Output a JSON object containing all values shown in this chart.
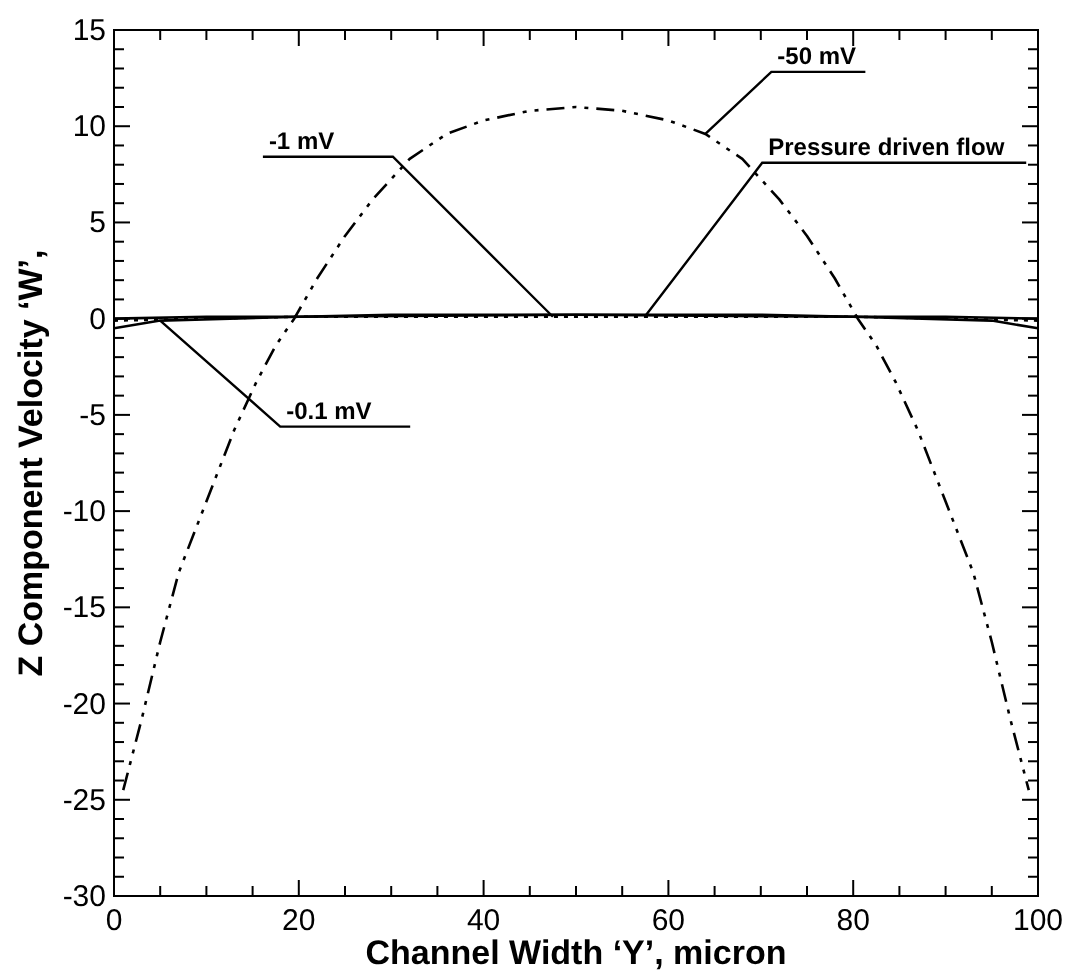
{
  "chart_data": {
    "type": "line",
    "xlabel": "Channel Width ‘Y’, micron",
    "ylabel": "Z Component Velocity ‘W’,",
    "xlim": [
      0,
      100
    ],
    "ylim": [
      -30,
      15
    ],
    "xticks": [
      0,
      {
        "value": 5,
        "label": null
      },
      {
        "value": 10,
        "label": null
      },
      {
        "value": 15,
        "label": null
      },
      20,
      {
        "value": 25,
        "label": null
      },
      {
        "value": 30,
        "label": null
      },
      {
        "value": 35,
        "label": null
      },
      40,
      {
        "value": 45,
        "label": null
      },
      {
        "value": 50,
        "label": null
      },
      {
        "value": 55,
        "label": null
      },
      60,
      {
        "value": 65,
        "label": null
      },
      {
        "value": 70,
        "label": null
      },
      {
        "value": 75,
        "label": null
      },
      80,
      {
        "value": 85,
        "label": null
      },
      {
        "value": 90,
        "label": null
      },
      {
        "value": 95,
        "label": null
      },
      100
    ],
    "yticks": [
      -30,
      {
        "value": -29,
        "label": null
      },
      {
        "value": -28,
        "label": null
      },
      {
        "value": -27,
        "label": null
      },
      {
        "value": -26,
        "label": null
      },
      -25,
      {
        "value": -24,
        "label": null
      },
      {
        "value": -23,
        "label": null
      },
      {
        "value": -22,
        "label": null
      },
      {
        "value": -21,
        "label": null
      },
      -20,
      {
        "value": -19,
        "label": null
      },
      {
        "value": -18,
        "label": null
      },
      {
        "value": -17,
        "label": null
      },
      {
        "value": -16,
        "label": null
      },
      -15,
      {
        "value": -14,
        "label": null
      },
      {
        "value": -13,
        "label": null
      },
      {
        "value": -12,
        "label": null
      },
      {
        "value": -11,
        "label": null
      },
      -10,
      {
        "value": -9,
        "label": null
      },
      {
        "value": -8,
        "label": null
      },
      {
        "value": -7,
        "label": null
      },
      {
        "value": -6,
        "label": null
      },
      -5,
      {
        "value": -4,
        "label": null
      },
      {
        "value": -3,
        "label": null
      },
      {
        "value": -2,
        "label": null
      },
      {
        "value": -1,
        "label": null
      },
      0,
      {
        "value": 1,
        "label": null
      },
      {
        "value": 2,
        "label": null
      },
      {
        "value": 3,
        "label": null
      },
      {
        "value": 4,
        "label": null
      },
      5,
      {
        "value": 6,
        "label": null
      },
      {
        "value": 7,
        "label": null
      },
      {
        "value": 8,
        "label": null
      },
      {
        "value": 9,
        "label": null
      },
      10,
      {
        "value": 11,
        "label": null
      },
      {
        "value": 12,
        "label": null
      },
      {
        "value": 13,
        "label": null
      },
      {
        "value": 14,
        "label": null
      },
      15
    ],
    "series": [
      {
        "name": "-50 mV",
        "color": "#000000",
        "line_style": "dashed",
        "x": [
          1,
          3,
          5,
          7,
          10,
          13,
          15.4,
          17.5,
          19.5,
          22,
          25,
          28,
          32,
          36,
          40,
          45,
          50,
          55,
          60,
          64,
          68,
          72,
          75,
          78,
          80.5,
          82.5,
          84.6,
          87,
          90,
          93,
          95,
          97,
          99
        ],
        "values": [
          -24.5,
          -20.8,
          -16.8,
          -13.2,
          -9.5,
          -5.8,
          -3.3,
          -1.4,
          0,
          2.1,
          4.3,
          6.2,
          8.3,
          9.6,
          10.3,
          10.8,
          11,
          10.8,
          10.3,
          9.6,
          8.3,
          6.2,
          4.3,
          2.1,
          0,
          -1.4,
          -3.3,
          -5.8,
          -9.5,
          -13.2,
          -16.8,
          -20.8,
          -24.5
        ]
      },
      {
        "name": "-1 mV",
        "color": "#000000",
        "line_style": "dotted",
        "x": [
          0,
          10,
          20,
          30,
          40,
          47.5,
          50,
          60,
          70,
          80,
          90,
          100
        ],
        "values": [
          -0.1,
          0,
          0.1,
          0.1,
          0.1,
          0.1,
          0.1,
          0.1,
          0.1,
          0.1,
          0,
          -0.1
        ]
      },
      {
        "name": "Pressure driven flow",
        "color": "#000000",
        "line_style": "solid",
        "x": [
          0,
          10,
          20,
          30,
          40,
          50,
          57.6,
          60,
          70,
          80,
          90,
          100
        ],
        "values": [
          0,
          0.1,
          0.1,
          0.2,
          0.2,
          0.2,
          0.2,
          0.2,
          0.2,
          0.1,
          0.1,
          0
        ]
      },
      {
        "name": "-0.1 mV",
        "color": "#000000",
        "line_style": "solid",
        "x": [
          0,
          5,
          20,
          50,
          80,
          95,
          100
        ],
        "values": [
          -0.5,
          -0.1,
          0.1,
          0.2,
          0.1,
          -0.1,
          -0.5
        ]
      }
    ]
  }
}
